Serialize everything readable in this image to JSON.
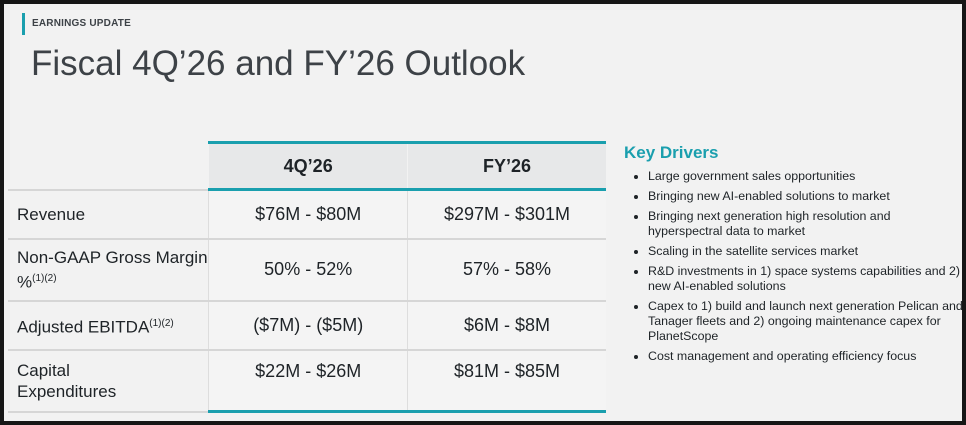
{
  "header": {
    "tag": "EARNINGS UPDATE",
    "title": "Fiscal 4Q’26 and FY’26 Outlook"
  },
  "table": {
    "columns": [
      "4Q’26",
      "FY’26"
    ],
    "rows": [
      {
        "label": "Revenue",
        "sup": "",
        "q": "$76M - $80M",
        "fy": "$297M - $301M"
      },
      {
        "label": "Non-GAAP Gross Margin %",
        "sup": "(1)(2)",
        "q": "50% - 52%",
        "fy": "57% - 58%"
      },
      {
        "label": "Adjusted EBITDA",
        "sup": "(1)(2)",
        "q": "($7M) - ($5M)",
        "fy": "$6M - $8M"
      },
      {
        "label": "Capital Expenditures",
        "sup": "",
        "q": "$22M - $26M",
        "fy": "$81M - $85M"
      }
    ]
  },
  "key_drivers": {
    "title": "Key Drivers",
    "items": [
      "Large government sales opportunities",
      "Bringing new AI-enabled solutions to market",
      "Bringing next generation high resolution and hyperspectral data to market",
      "Scaling in the satellite services market",
      "R&D investments in 1) space systems capabilities and 2) new AI-enabled solutions",
      "Capex to 1) build and launch next generation Pelican and Tanager fleets and 2) ongoing maintenance capex for PlanetScope",
      "Cost management and operating efficiency focus"
    ]
  }
}
